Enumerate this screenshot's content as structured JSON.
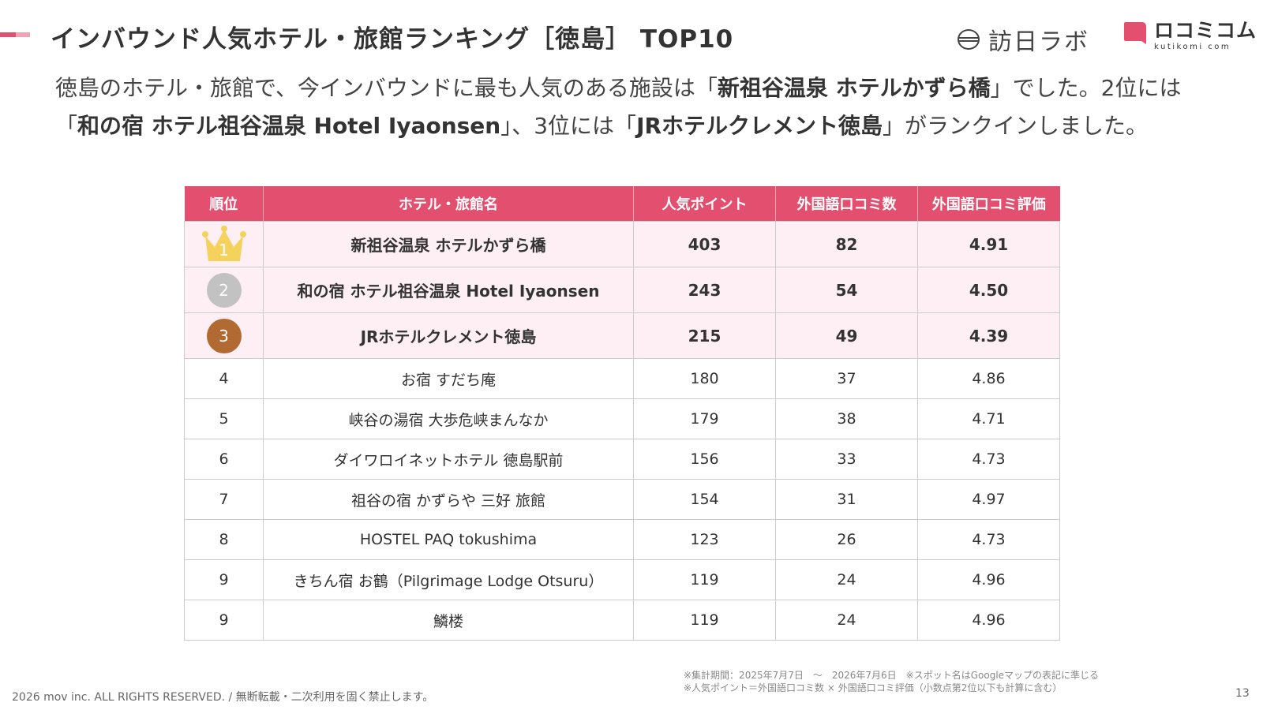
{
  "header": {
    "title": "インバウンド人気ホテル・旅館ランキング［徳島］ TOP10",
    "logo_houn": "訪日ラボ",
    "logo_kuchikomi": "ロコミコム",
    "logo_kuchikomi_sub": "kutikomi com"
  },
  "lead": {
    "p1": "徳島のホテル・旅館で、今インバウンドに最も人気のある施設は「",
    "b1": "新祖谷温泉 ホテルかずら橋",
    "p2": "」でした。2位には「",
    "b2": "和の宿 ホテル祖谷温泉 Hotel Iyaonsen",
    "p3": "」、3位には「",
    "b3": "JRホテルクレメント徳島",
    "p4": "」がランクインしました。"
  },
  "table": {
    "headers": [
      "順位",
      "ホテル・旅館名",
      "人気ポイント",
      "外国語口コミ数",
      "外国語口コミ評価"
    ],
    "rows": [
      {
        "rank": "1",
        "name": "新祖谷温泉 ホテルかずら橋",
        "points": "403",
        "reviews": "82",
        "rating": "4.91"
      },
      {
        "rank": "2",
        "name": "和の宿 ホテル祖谷温泉 Hotel Iyaonsen",
        "points": "243",
        "reviews": "54",
        "rating": "4.50"
      },
      {
        "rank": "3",
        "name": "JRホテルクレメント徳島",
        "points": "215",
        "reviews": "49",
        "rating": "4.39"
      },
      {
        "rank": "4",
        "name": "お宿 すだち庵",
        "points": "180",
        "reviews": "37",
        "rating": "4.86"
      },
      {
        "rank": "5",
        "name": "峡谷の湯宿 大歩危峡まんなか",
        "points": "179",
        "reviews": "38",
        "rating": "4.71"
      },
      {
        "rank": "6",
        "name": "ダイワロイネットホテル 徳島駅前",
        "points": "156",
        "reviews": "33",
        "rating": "4.73"
      },
      {
        "rank": "7",
        "name": "祖谷の宿 かずらや 三好 旅館",
        "points": "154",
        "reviews": "31",
        "rating": "4.97"
      },
      {
        "rank": "8",
        "name": "HOSTEL PAQ tokushima",
        "points": "123",
        "reviews": "26",
        "rating": "4.73"
      },
      {
        "rank": "9",
        "name": "きちん宿 お鶴（Pilgrimage Lodge Otsuru）",
        "points": "119",
        "reviews": "24",
        "rating": "4.96"
      },
      {
        "rank": "9",
        "name": "鱗楼",
        "points": "119",
        "reviews": "24",
        "rating": "4.96"
      }
    ]
  },
  "notes": {
    "line1": "※集計期間：2025年7月7日　～　2026年7月6日　※スポット名はGoogleマップの表記に準じる",
    "line2": "※人気ポイント＝外国語口コミ数 × 外国語口コミ評価（小数点第2位以下も計算に含む）"
  },
  "footer": {
    "copyright": "2026 mov inc. ALL RIGHTS RESERVED. / 無断転載・二次利用を固く禁止します。",
    "page": "13"
  },
  "colors": {
    "accent": "#e3506f",
    "row_highlight": "#fdeff3",
    "gold": "#f5d25c",
    "silver": "#c2c2c2",
    "bronze": "#b06a32"
  }
}
